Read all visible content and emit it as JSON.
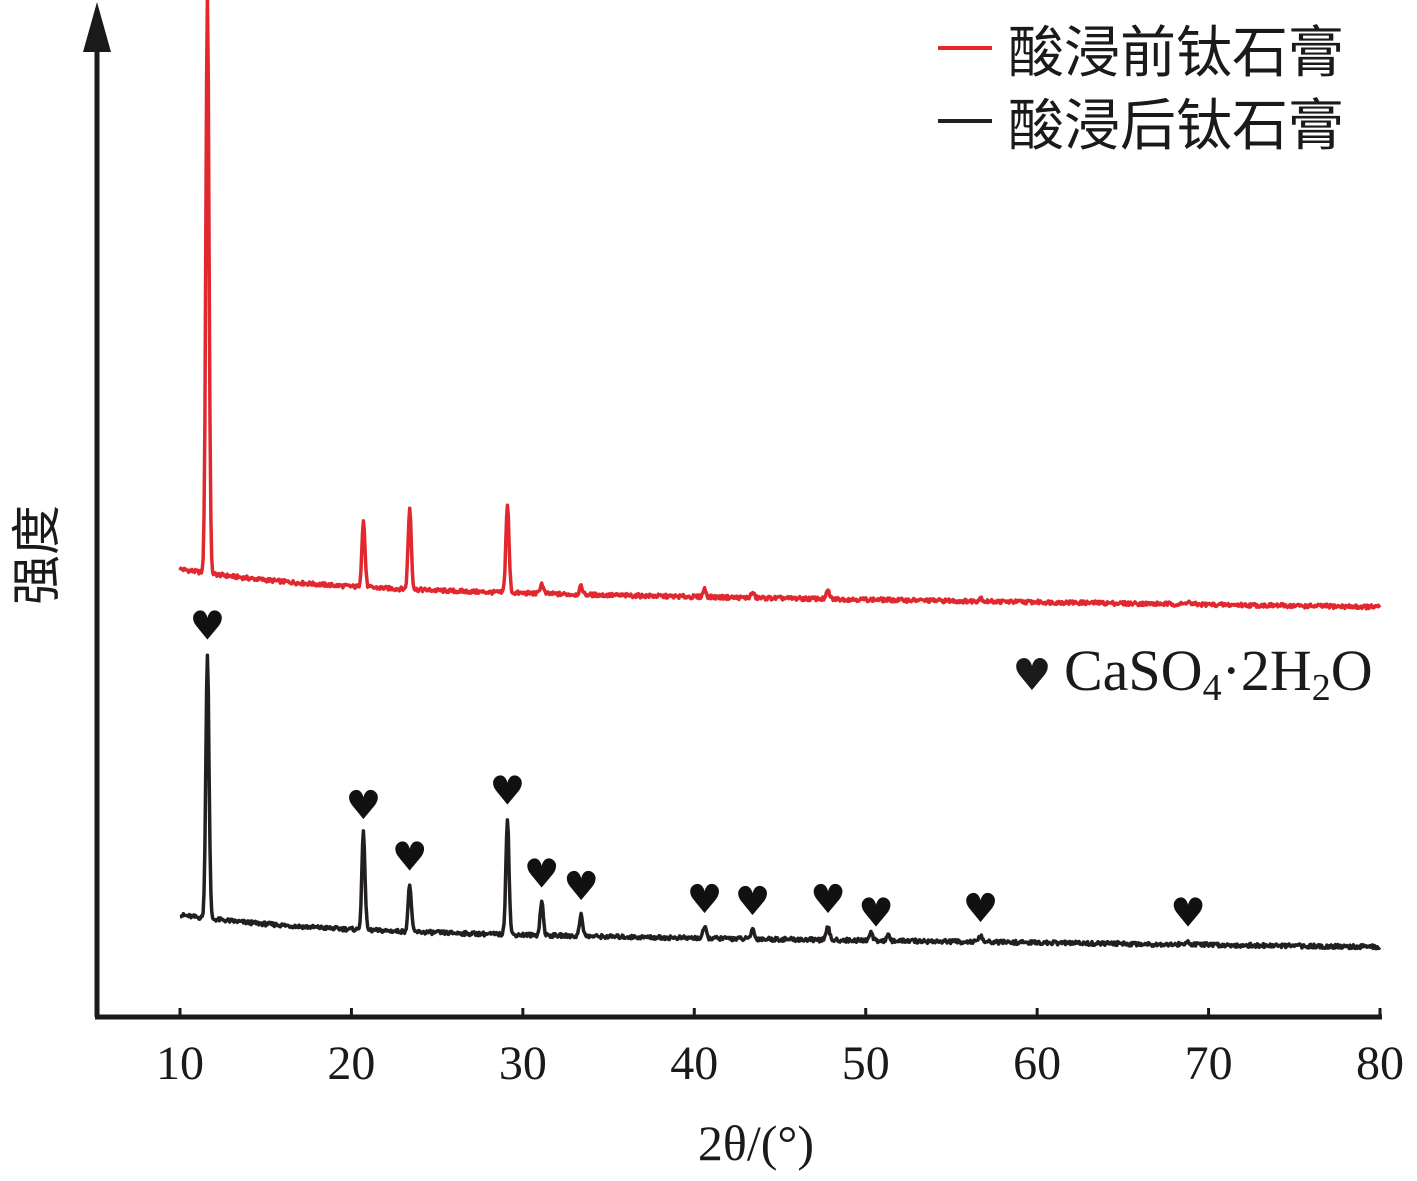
{
  "chart_data": {
    "type": "line",
    "xlabel": "2θ/(°)",
    "ylabel": "强度",
    "xlim": [
      5,
      80
    ],
    "xticks": [
      10,
      20,
      30,
      40,
      50,
      60,
      70,
      80
    ],
    "y_ticks_shown": false,
    "grid": false,
    "legend_position": "top-right",
    "series": [
      {
        "name": "酸浸前钛石膏",
        "color": "#e0282e",
        "baseline": 21,
        "baseline_end": 0,
        "peaks": [
          {
            "x": 11.6,
            "y": 575
          },
          {
            "x": 20.7,
            "y": 66
          },
          {
            "x": 23.4,
            "y": 81
          },
          {
            "x": 29.1,
            "y": 88
          },
          {
            "x": 31.1,
            "y": 10
          },
          {
            "x": 33.4,
            "y": 8
          },
          {
            "x": 40.6,
            "y": 8
          },
          {
            "x": 43.4,
            "y": 5
          },
          {
            "x": 47.8,
            "y": 8
          },
          {
            "x": 56.7,
            "y": 4
          },
          {
            "x": 68.8,
            "y": 3
          }
        ]
      },
      {
        "name": "酸浸后钛石膏",
        "color": "#231f20",
        "baseline": 17,
        "baseline_end": 0,
        "peaks": [
          {
            "x": 11.6,
            "y": 265
          },
          {
            "x": 20.7,
            "y": 97
          },
          {
            "x": 23.4,
            "y": 47
          },
          {
            "x": 29.1,
            "y": 116
          },
          {
            "x": 31.1,
            "y": 34
          },
          {
            "x": 33.4,
            "y": 22
          },
          {
            "x": 40.6,
            "y": 11
          },
          {
            "x": 43.4,
            "y": 10
          },
          {
            "x": 47.8,
            "y": 13
          },
          {
            "x": 50.3,
            "y": 9
          },
          {
            "x": 51.3,
            "y": 5
          },
          {
            "x": 56.7,
            "y": 6
          },
          {
            "x": 68.8,
            "y": 4
          }
        ]
      }
    ],
    "markers": {
      "symbol": "♥",
      "positions": [
        11.6,
        20.7,
        23.4,
        29.1,
        31.1,
        33.4,
        40.6,
        43.4,
        47.8,
        50.6,
        56.7,
        68.8
      ]
    },
    "annotation": {
      "text": "CaSO4·2H2O",
      "symbol": "♥",
      "parts": {
        "a": "CaSO",
        "s1": "4",
        "b": "·2H",
        "s2": "2",
        "c": "O"
      }
    }
  }
}
